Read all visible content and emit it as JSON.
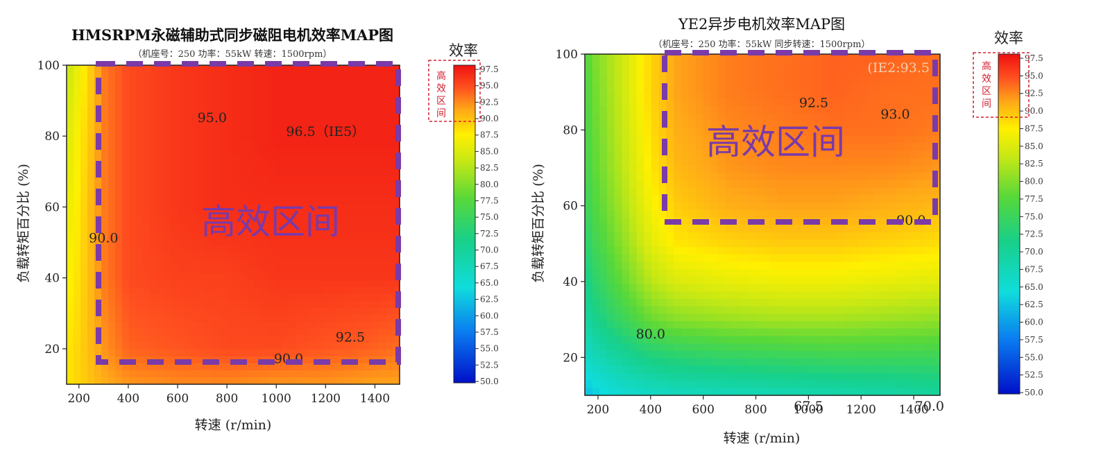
{
  "charts": [
    {
      "title": "HMSRPM永磁辅助式同步磁阻电机效率MAP图",
      "subtitle": "（机座号：250  功率：55kW  转速：1500rpm）",
      "xlabel": "转速 (r/min)",
      "ylabel": "负载转矩百分比 (%)",
      "region_label": "高效区间",
      "colorbar_title": "效率",
      "colorbar_box_label": "高效区间",
      "colorbar_ticks": [
        "97.5",
        "95.0",
        "92.5",
        "90.0",
        "87.5",
        "85.0",
        "82.5",
        "80.0",
        "77.5",
        "75.0",
        "72.5",
        "70.0",
        "67.5",
        "65.0",
        "62.5",
        "60.0",
        "57.5",
        "55.0",
        "52.5",
        "50.0"
      ],
      "x_tick_labels": [
        "200",
        "400",
        "600",
        "800",
        "1000",
        "1200",
        "1400"
      ],
      "y_tick_labels": [
        "20",
        "40",
        "60",
        "80",
        "100"
      ],
      "contour_labels": [
        {
          "text": "95.0",
          "x": 740,
          "y": 84
        },
        {
          "text": "96.5（IE5）",
          "x": 1200,
          "y": 80
        },
        {
          "text": "90.0",
          "x": 300,
          "y": 50
        },
        {
          "text": "92.5",
          "x": 1300,
          "y": 22
        },
        {
          "text": "90.0",
          "x": 1050,
          "y": 16
        }
      ]
    },
    {
      "title": "YE2异步电机效率MAP图",
      "subtitle": "（机座号：250  功率：55kW  同步转速：1500rpm）",
      "xlabel": "转速 (r/min)",
      "ylabel": "负载转矩百分比 (%)",
      "region_label": "高效区间",
      "colorbar_title": "效率",
      "colorbar_box_label": "高效区间",
      "colorbar_ticks": [
        "97.5",
        "95.0",
        "92.5",
        "90.0",
        "87.5",
        "85.0",
        "82.5",
        "80.0",
        "77.5",
        "75.0",
        "72.5",
        "70.0",
        "67.5",
        "65.0",
        "62.5",
        "60.0",
        "57.5",
        "55.0",
        "52.5",
        "50.0"
      ],
      "x_tick_labels": [
        "200",
        "400",
        "600",
        "800",
        "1000",
        "1200",
        "1400"
      ],
      "y_tick_labels": [
        "20",
        "40",
        "60",
        "80",
        "100"
      ],
      "corner_label": "(IE2:93.5",
      "contour_labels": [
        {
          "text": "92.5",
          "x": 1020,
          "y": 86
        },
        {
          "text": "93.0",
          "x": 1330,
          "y": 83
        },
        {
          "text": "90.0",
          "x": 1390,
          "y": 55
        },
        {
          "text": "80.0",
          "x": 400,
          "y": 25
        },
        {
          "text": "67.5",
          "x": 1000,
          "y": 6
        },
        {
          "text": "70.0",
          "x": 1460,
          "y": 6
        }
      ]
    }
  ],
  "chart_data": [
    {
      "type": "heatmap",
      "title": "HMSRPM永磁辅助式同步磁阻电机效率MAP图",
      "xlabel": "转速 (r/min)",
      "ylabel": "负载转矩百分比 (%)",
      "xlim": [
        150,
        1500
      ],
      "ylim": [
        10,
        100
      ],
      "colorbar_label": "效率",
      "colorbar_range": [
        50.0,
        97.5
      ],
      "high_efficiency_region": {
        "x": [
          290,
          1490
        ],
        "y": [
          16,
          99
        ]
      },
      "contour_levels": [
        90.0,
        92.5,
        95.0,
        96.5
      ],
      "sample_x": [
        150,
        200,
        250,
        300,
        400,
        600,
        800,
        1000,
        1200,
        1400,
        1500
      ],
      "sample_y": [
        10,
        20,
        40,
        60,
        80,
        100
      ],
      "values": [
        [
          87.5,
          88.5,
          89.5,
          90.5,
          91.5,
          92.0,
          92.0,
          91.5,
          91.5,
          91.0,
          91.0
        ],
        [
          87.5,
          88.5,
          90.0,
          91.5,
          93.5,
          94.0,
          94.5,
          94.5,
          94.0,
          93.5,
          93.0
        ],
        [
          86.5,
          88.0,
          90.0,
          92.5,
          94.5,
          95.0,
          95.0,
          95.5,
          95.5,
          95.5,
          95.5
        ],
        [
          85.5,
          87.5,
          90.0,
          92.5,
          94.5,
          95.5,
          96.0,
          96.0,
          96.0,
          96.0,
          96.0
        ],
        [
          84.5,
          87.0,
          89.5,
          92.5,
          94.5,
          95.5,
          96.0,
          96.5,
          96.5,
          96.5,
          96.5
        ],
        [
          83.0,
          86.0,
          89.0,
          92.5,
          94.5,
          95.5,
          96.0,
          96.5,
          96.5,
          96.5,
          96.5
        ]
      ]
    },
    {
      "type": "heatmap",
      "title": "YE2异步电机效率MAP图",
      "xlabel": "转速 (r/min)",
      "ylabel": "负载转矩百分比 (%)",
      "xlim": [
        150,
        1500
      ],
      "ylim": [
        10,
        100
      ],
      "colorbar_label": "效率",
      "colorbar_range": [
        50.0,
        97.5
      ],
      "high_efficiency_region": {
        "x": [
          450,
          1490
        ],
        "y": [
          55,
          99
        ]
      },
      "contour_levels": [
        67.5,
        70.0,
        80.0,
        90.0,
        92.5,
        93.0
      ],
      "sample_x": [
        150,
        200,
        300,
        400,
        500,
        700,
        900,
        1100,
        1300,
        1500
      ],
      "sample_y": [
        10,
        20,
        30,
        40,
        50,
        60,
        70,
        80,
        90,
        100
      ],
      "values": [
        [
          62.0,
          63.5,
          65.0,
          66.0,
          66.5,
          67.0,
          67.5,
          68.0,
          68.5,
          69.5
        ],
        [
          66.0,
          67.5,
          70.0,
          72.0,
          73.0,
          74.0,
          74.5,
          75.0,
          75.0,
          75.0
        ],
        [
          69.0,
          71.5,
          75.0,
          78.5,
          80.0,
          81.0,
          81.5,
          81.5,
          81.0,
          80.5
        ],
        [
          71.0,
          74.0,
          78.5,
          82.5,
          84.5,
          85.5,
          86.0,
          86.0,
          85.5,
          85.0
        ],
        [
          73.0,
          76.0,
          80.5,
          85.0,
          87.5,
          88.5,
          89.0,
          89.0,
          88.5,
          88.0
        ],
        [
          74.5,
          77.5,
          82.0,
          86.5,
          89.0,
          90.5,
          91.0,
          91.0,
          90.5,
          90.0
        ],
        [
          75.5,
          78.5,
          83.0,
          87.5,
          90.0,
          91.5,
          92.0,
          92.0,
          92.0,
          91.5
        ],
        [
          76.0,
          79.0,
          83.5,
          88.0,
          90.5,
          92.0,
          92.5,
          93.0,
          93.0,
          92.5
        ],
        [
          76.5,
          79.5,
          84.0,
          88.5,
          91.0,
          92.5,
          93.0,
          93.5,
          93.0,
          93.0
        ],
        [
          77.0,
          80.0,
          84.0,
          88.5,
          91.0,
          92.5,
          93.0,
          93.5,
          93.5,
          93.0
        ]
      ]
    }
  ]
}
